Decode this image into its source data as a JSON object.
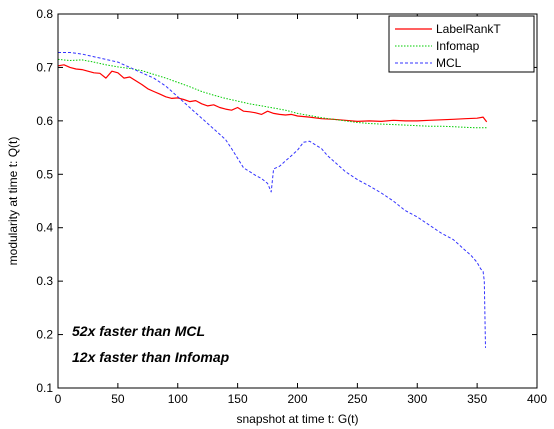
{
  "chart_data": {
    "type": "line",
    "title": "",
    "xlabel": "snapshot at time t: G(t)",
    "ylabel": "modularity at time t: Q(t)",
    "xlim": [
      0,
      400
    ],
    "ylim": [
      0.1,
      0.8
    ],
    "xticks": [
      0,
      50,
      100,
      150,
      200,
      250,
      300,
      350,
      400
    ],
    "yticks": [
      0.1,
      0.2,
      0.3,
      0.4,
      0.5,
      0.6,
      0.7,
      0.8
    ],
    "xtick_labels": [
      "0",
      "50",
      "100",
      "150",
      "200",
      "250",
      "300",
      "350",
      "400"
    ],
    "ytick_labels": [
      "0.1",
      "0.2",
      "0.3",
      "0.4",
      "0.5",
      "0.6",
      "0.7",
      "0.8"
    ],
    "grid": false,
    "legend_position": "top-right",
    "series": [
      {
        "name": "LabelRankT",
        "color": "#ff0000",
        "dash": "solid",
        "x": [
          0,
          5,
          10,
          15,
          20,
          25,
          30,
          35,
          40,
          45,
          50,
          55,
          60,
          65,
          70,
          75,
          80,
          85,
          90,
          95,
          100,
          105,
          110,
          115,
          120,
          125,
          130,
          135,
          140,
          145,
          150,
          155,
          160,
          165,
          170,
          175,
          180,
          185,
          190,
          195,
          200,
          210,
          220,
          230,
          240,
          250,
          260,
          270,
          280,
          290,
          300,
          310,
          320,
          330,
          340,
          350,
          355,
          358
        ],
        "values": [
          0.703,
          0.705,
          0.7,
          0.697,
          0.696,
          0.693,
          0.69,
          0.689,
          0.68,
          0.693,
          0.69,
          0.68,
          0.682,
          0.675,
          0.668,
          0.66,
          0.655,
          0.65,
          0.645,
          0.642,
          0.643,
          0.64,
          0.636,
          0.638,
          0.632,
          0.628,
          0.63,
          0.625,
          0.622,
          0.62,
          0.625,
          0.618,
          0.617,
          0.615,
          0.612,
          0.618,
          0.614,
          0.612,
          0.611,
          0.612,
          0.609,
          0.607,
          0.604,
          0.603,
          0.601,
          0.599,
          0.6,
          0.599,
          0.601,
          0.6,
          0.6,
          0.601,
          0.602,
          0.603,
          0.604,
          0.605,
          0.607,
          0.598
        ]
      },
      {
        "name": "Infomap",
        "color": "#00cc00",
        "dash": "dotted",
        "x": [
          0,
          10,
          20,
          30,
          40,
          50,
          60,
          70,
          80,
          90,
          100,
          110,
          120,
          130,
          140,
          150,
          160,
          170,
          180,
          190,
          200,
          210,
          220,
          230,
          240,
          250,
          260,
          270,
          280,
          290,
          300,
          310,
          320,
          330,
          340,
          350,
          358
        ],
        "values": [
          0.715,
          0.713,
          0.714,
          0.71,
          0.705,
          0.701,
          0.698,
          0.694,
          0.687,
          0.68,
          0.672,
          0.664,
          0.655,
          0.648,
          0.642,
          0.637,
          0.632,
          0.628,
          0.624,
          0.62,
          0.614,
          0.61,
          0.606,
          0.603,
          0.6,
          0.597,
          0.595,
          0.594,
          0.593,
          0.592,
          0.591,
          0.59,
          0.59,
          0.589,
          0.588,
          0.587,
          0.587
        ]
      },
      {
        "name": "MCL",
        "color": "#3333ff",
        "dash": "dashed",
        "x": [
          0,
          10,
          20,
          30,
          40,
          50,
          60,
          70,
          80,
          90,
          100,
          110,
          120,
          130,
          140,
          145,
          150,
          155,
          160,
          165,
          170,
          175,
          178,
          180,
          185,
          190,
          195,
          200,
          205,
          210,
          215,
          220,
          225,
          230,
          240,
          250,
          260,
          270,
          280,
          290,
          300,
          310,
          320,
          330,
          340,
          345,
          350,
          353,
          355,
          356,
          357
        ],
        "values": [
          0.728,
          0.728,
          0.725,
          0.72,
          0.715,
          0.71,
          0.7,
          0.69,
          0.68,
          0.665,
          0.645,
          0.625,
          0.605,
          0.585,
          0.565,
          0.548,
          0.53,
          0.512,
          0.505,
          0.498,
          0.492,
          0.483,
          0.467,
          0.51,
          0.515,
          0.525,
          0.535,
          0.545,
          0.56,
          0.562,
          0.555,
          0.548,
          0.535,
          0.525,
          0.505,
          0.49,
          0.478,
          0.465,
          0.45,
          0.432,
          0.42,
          0.405,
          0.39,
          0.378,
          0.358,
          0.348,
          0.335,
          0.323,
          0.318,
          0.3,
          0.175
        ]
      }
    ],
    "annotations": [
      "52x faster than MCL",
      "12x faster than Infomap"
    ]
  }
}
